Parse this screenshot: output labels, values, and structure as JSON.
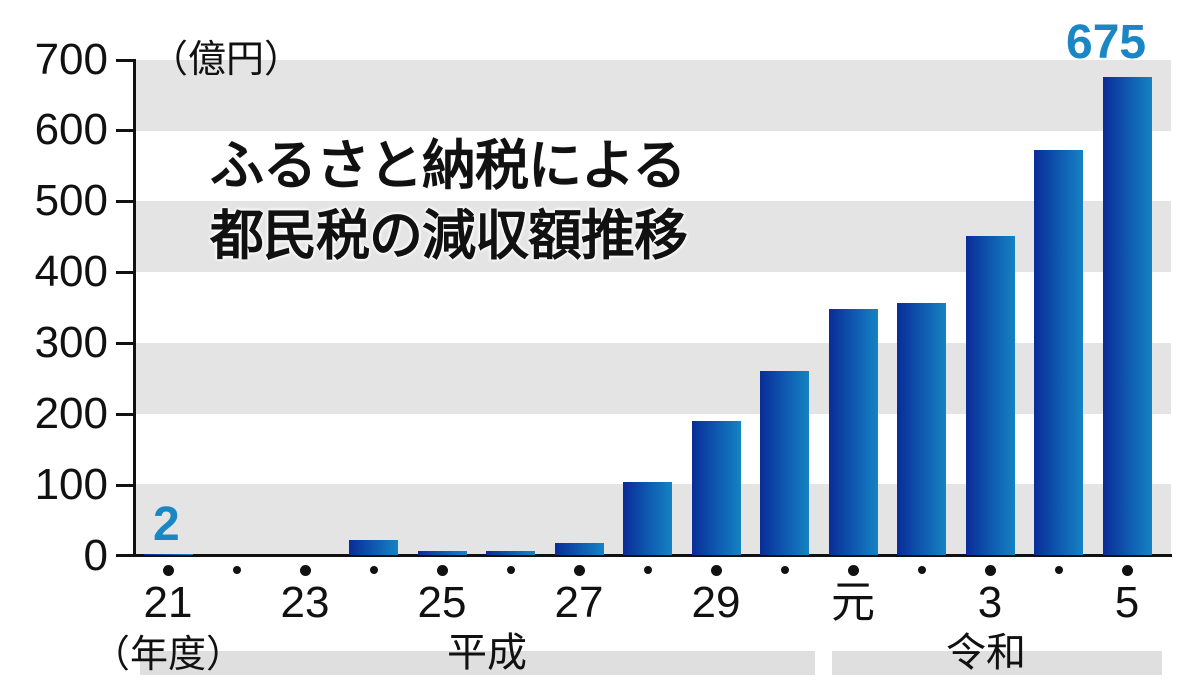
{
  "chart_data": {
    "type": "bar",
    "title": "ふるさと納税による都民税の減収額推移",
    "title_lines": [
      "ふるさと納税による",
      "都民税の減収額推移"
    ],
    "ylabel": "（億円）",
    "xlabel": "（年度）",
    "ylim": [
      0,
      700
    ],
    "yticks": [
      0,
      100,
      200,
      300,
      400,
      500,
      600,
      700
    ],
    "categories": [
      "21",
      "22",
      "23",
      "24",
      "25",
      "26",
      "27",
      "28",
      "29",
      "30",
      "元",
      "2",
      "3",
      "4",
      "5"
    ],
    "x_tick_labels_shown": [
      "21",
      "23",
      "25",
      "27",
      "29",
      "元",
      "3",
      "5"
    ],
    "values": [
      2,
      0,
      0,
      21,
      5,
      6,
      17,
      103,
      189,
      260,
      347,
      356,
      450,
      572,
      675
    ],
    "annotations": [
      {
        "category": "21",
        "label": "2"
      },
      {
        "category": "5",
        "label": "675"
      }
    ],
    "eras": [
      {
        "name": "平成",
        "from": "21",
        "to": "30"
      },
      {
        "name": "令和",
        "from": "元",
        "to": "5"
      }
    ],
    "grid": "alternating horizontal bands",
    "colors": {
      "bar_dark": "#0a2c97",
      "bar_light": "#1583c2",
      "annotation": "#1a87c4",
      "band": "#e4e4e4"
    }
  },
  "labels": {
    "unit": "（億円）",
    "title_line1": "ふるさと納税による",
    "title_line2": "都民税の減収額推移",
    "x_unit": "（年度）",
    "era_heisei": "平成",
    "era_reiwa": "令和",
    "val_first": "2",
    "val_last": "675"
  },
  "y_axis": [
    "0",
    "100",
    "200",
    "300",
    "400",
    "500",
    "600",
    "700"
  ],
  "x_axis": {
    "l0": "21",
    "l2": "23",
    "l4": "25",
    "l6": "27",
    "l8": "29",
    "l10": "元",
    "l12": "3",
    "l14": "5"
  }
}
